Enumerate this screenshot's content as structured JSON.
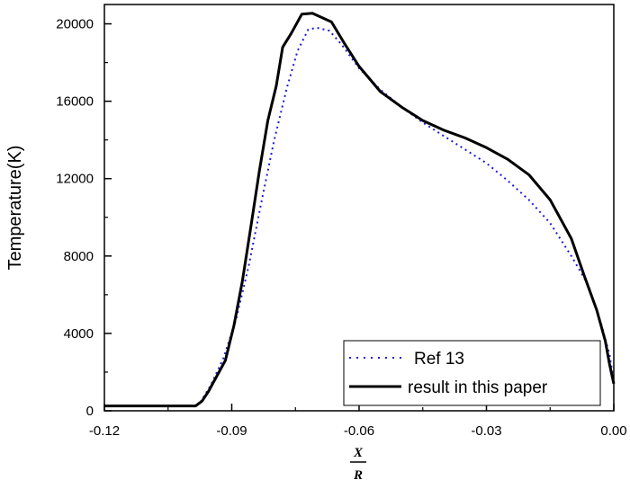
{
  "chart_data": {
    "type": "line",
    "title": "",
    "xlabel": {
      "numerator": "X",
      "denominator": "R"
    },
    "ylabel": "Temperature(K)",
    "xlim": [
      -0.12,
      0.0
    ],
    "ylim": [
      0,
      21000
    ],
    "xticks": [
      -0.12,
      -0.09,
      -0.06,
      -0.03,
      0.0
    ],
    "xtick_labels": [
      "-0.12",
      "-0.09",
      "-0.06",
      "-0.03",
      "0.00"
    ],
    "yticks": [
      0,
      4000,
      8000,
      12000,
      16000,
      20000
    ],
    "ytick_labels": [
      "0",
      "4000",
      "8000",
      "12000",
      "16000",
      "20000"
    ],
    "grid": false,
    "legend_position": "bottom-right",
    "series": [
      {
        "name": "Ref 13",
        "style": "dotted",
        "color": "#1a1adc",
        "x": [
          -0.12,
          -0.099,
          -0.0975,
          -0.095,
          -0.092,
          -0.089,
          -0.086,
          -0.083,
          -0.08,
          -0.077,
          -0.0745,
          -0.072,
          -0.07,
          -0.067,
          -0.064,
          -0.06,
          -0.055,
          -0.05,
          -0.045,
          -0.04,
          -0.035,
          -0.03,
          -0.025,
          -0.02,
          -0.015,
          -0.01,
          -0.006,
          -0.003,
          -0.001,
          0.0
        ],
        "y": [
          250,
          250,
          400,
          1300,
          2700,
          4700,
          7500,
          10800,
          14000,
          16700,
          18600,
          19700,
          19800,
          19650,
          18900,
          17700,
          16600,
          15700,
          14900,
          14200,
          13500,
          12800,
          11900,
          10900,
          9700,
          8000,
          6500,
          4500,
          2900,
          1500
        ]
      },
      {
        "name": "result in this paper",
        "style": "solid",
        "color": "#000000",
        "x": [
          -0.12,
          -0.0985,
          -0.097,
          -0.0955,
          -0.094,
          -0.0915,
          -0.0895,
          -0.0875,
          -0.0855,
          -0.0835,
          -0.0815,
          -0.0795,
          -0.078,
          -0.076,
          -0.0735,
          -0.071,
          -0.0665,
          -0.0635,
          -0.06,
          -0.055,
          -0.05,
          -0.045,
          -0.04,
          -0.035,
          -0.03,
          -0.025,
          -0.02,
          -0.015,
          -0.01,
          -0.007,
          -0.004,
          -0.002,
          -0.001,
          0.0
        ],
        "y": [
          250,
          250,
          500,
          1000,
          1600,
          2600,
          4400,
          6700,
          9500,
          12400,
          15000,
          16800,
          18800,
          19500,
          20500,
          20550,
          20100,
          19000,
          17800,
          16500,
          15700,
          15000,
          14500,
          14100,
          13600,
          13000,
          12200,
          10900,
          8900,
          7000,
          5200,
          3600,
          2400,
          1400
        ]
      }
    ]
  }
}
